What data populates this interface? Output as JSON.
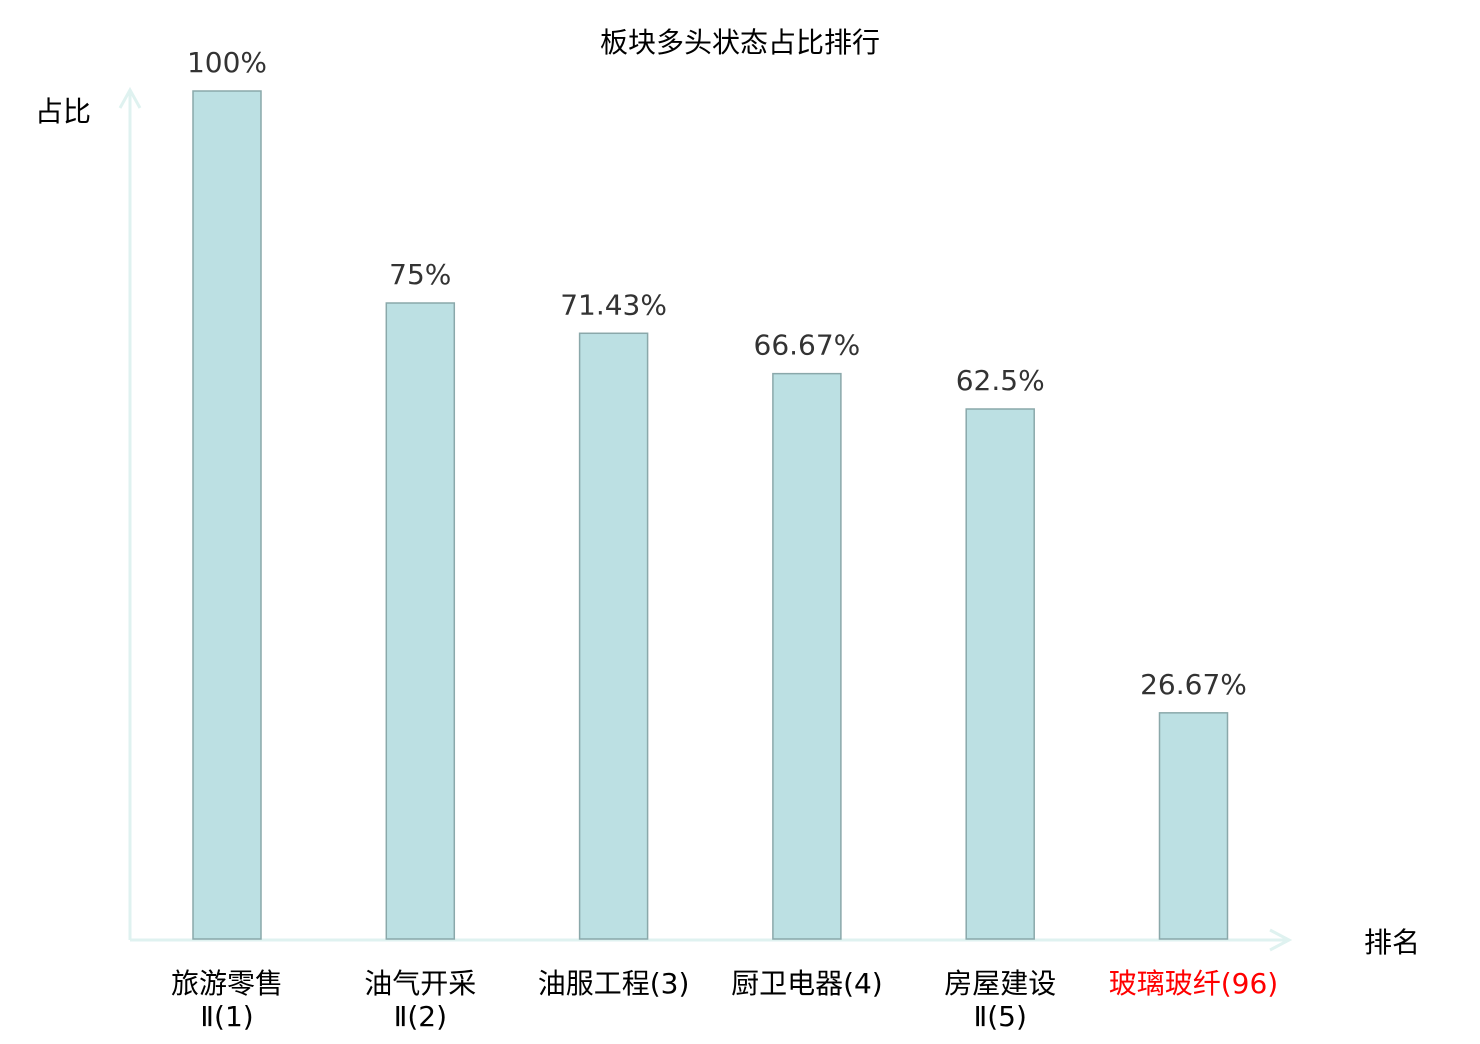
{
  "chart_data": {
    "type": "bar",
    "title": "板块多头状态占比排行",
    "xlabel": "排名",
    "ylabel": "占比",
    "ylim": [
      0,
      100
    ],
    "grid": false,
    "categories": [
      {
        "lines": [
          "旅游零售",
          "Ⅱ(1)"
        ],
        "highlight": false
      },
      {
        "lines": [
          "油气开采",
          "Ⅱ(2)"
        ],
        "highlight": false
      },
      {
        "lines": [
          "油服工程(3)"
        ],
        "highlight": false
      },
      {
        "lines": [
          "厨卫电器(4)"
        ],
        "highlight": false
      },
      {
        "lines": [
          "房屋建设",
          "Ⅱ(5)"
        ],
        "highlight": false
      },
      {
        "lines": [
          "玻璃玻纤(96)"
        ],
        "highlight": true
      }
    ],
    "values": [
      100,
      75,
      71.43,
      66.67,
      62.5,
      26.67
    ],
    "data_labels": [
      "100%",
      "75%",
      "71.43%",
      "66.67%",
      "62.5%",
      "26.67%"
    ],
    "colors": {
      "bar": "#bce0e3",
      "bar_edge": "#8aa8aa",
      "axis": "#dff2f0",
      "highlight": "#ff0000",
      "text": "#333333"
    }
  }
}
